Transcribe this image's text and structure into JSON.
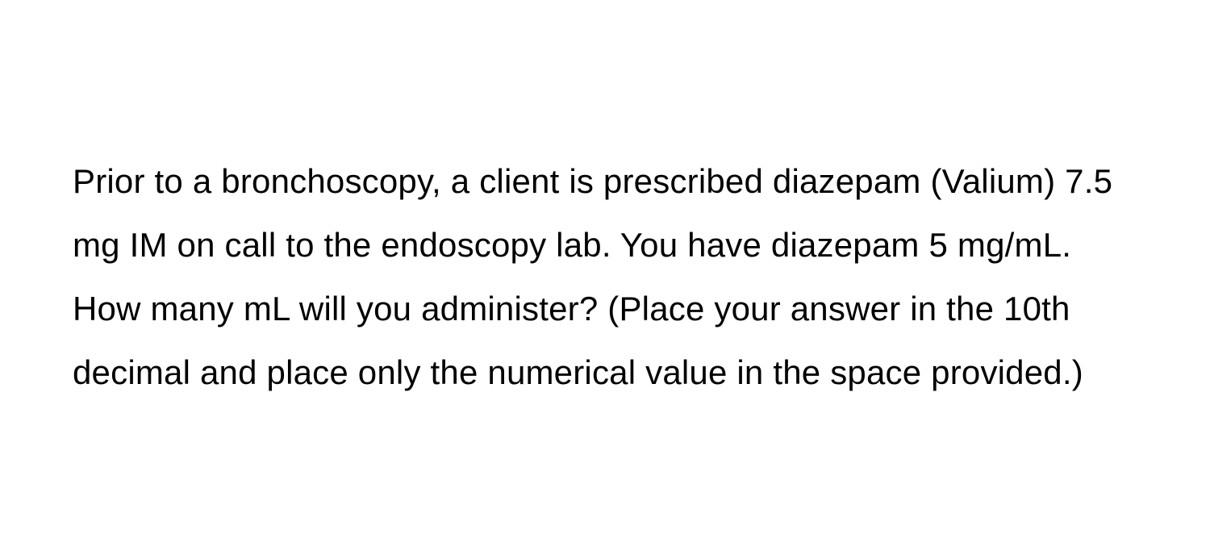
{
  "question": {
    "text": "Prior to a bronchoscopy, a client is prescribed diazepam (Valium) 7.5 mg IM on call to the endoscopy lab. You have diazepam 5 mg/mL. How many mL will you administer? (Place your answer in the 10th decimal and place only the numerical value in the space provided.)",
    "font_size": 42,
    "line_height": 1.88,
    "text_color": "#000000",
    "background_color": "#ffffff",
    "font_weight": 400
  }
}
